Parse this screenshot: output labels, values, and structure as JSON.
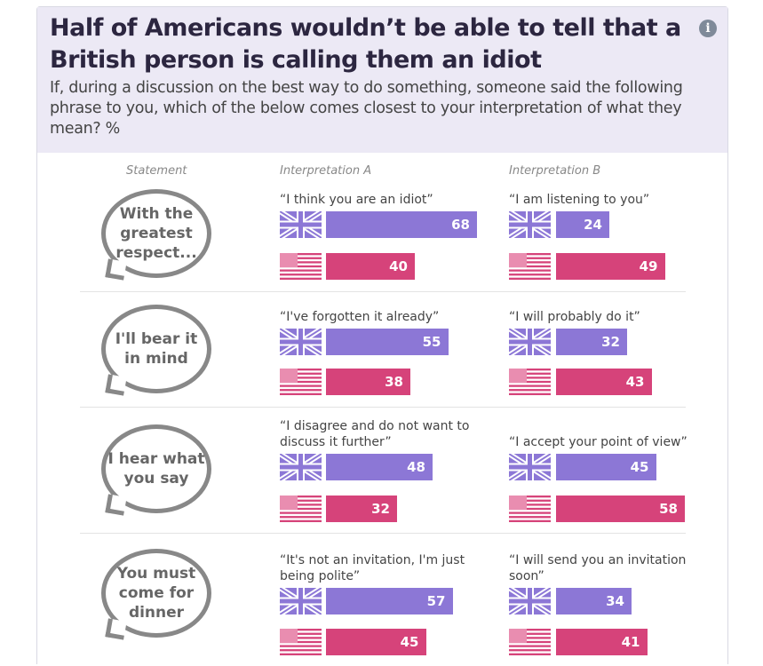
{
  "title": "Half of Americans wouldn’t be able to tell that a British person is calling them an idiot",
  "subtitle": "If, during a discussion on the best way to do something, someone said the following phrase to you, which of the below comes closest to your interpretation of what they mean? %",
  "info_icon": "info-icon",
  "chart_data": {
    "type": "bar",
    "unit": "%",
    "column_headers": [
      "Statement",
      "Interpretation A",
      "Interpretation B"
    ],
    "colors": {
      "uk": "#8c77d6",
      "us": "#d6437a"
    },
    "series_icons": [
      "uk-flag",
      "us-flag"
    ],
    "rows": [
      {
        "statement": "With the greatest respect...",
        "a_label": "“I think you are an idiot”",
        "a": {
          "uk": 68,
          "us": 40
        },
        "b_label": "“I am listening to you”",
        "b": {
          "uk": 24,
          "us": 49
        }
      },
      {
        "statement": "I'll bear it in mind",
        "a_label": "“I've forgotten it already”",
        "a": {
          "uk": 55,
          "us": 38
        },
        "b_label": "“I will probably do it”",
        "b": {
          "uk": 32,
          "us": 43
        }
      },
      {
        "statement": "I hear what you say",
        "a_label": "“I disagree and do not want to discuss it further”",
        "a": {
          "uk": 48,
          "us": 32
        },
        "b_label": "“I accept your point of view”",
        "b": {
          "uk": 45,
          "us": 58
        }
      },
      {
        "statement": "You must come for dinner",
        "a_label": "“It's not an invitation, I'm just being polite”",
        "a": {
          "uk": 57,
          "us": 45
        },
        "b_label": "“I will send you an invitation soon”",
        "b": {
          "uk": 34,
          "us": 41
        }
      }
    ]
  }
}
